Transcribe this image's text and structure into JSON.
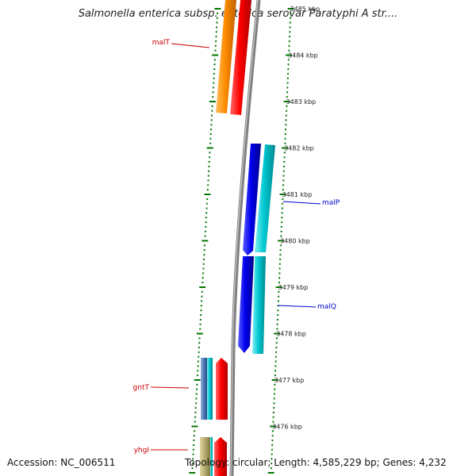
{
  "title": "Salmonella enterica subsp. enterica serovar Paratyphi A str....",
  "footer": {
    "accession": "Accession: NC_006511",
    "summary": "Topology: circular; Length: 4,585,229 bp; Genes: 4,232"
  },
  "ticks": [
    {
      "kbp": 3485,
      "label": "3485 kbp"
    },
    {
      "kbp": 3484,
      "label": "3484 kbp"
    },
    {
      "kbp": 3483,
      "label": "3483 kbp"
    },
    {
      "kbp": 3482,
      "label": "3482 kbp"
    },
    {
      "kbp": 3481,
      "label": "3481 kbp"
    },
    {
      "kbp": 3480,
      "label": "3480 kbp"
    },
    {
      "kbp": 3479,
      "label": "3479 kbp"
    },
    {
      "kbp": 3478,
      "label": "3478 kbp"
    },
    {
      "kbp": 3477,
      "label": "3477 kbp"
    },
    {
      "kbp": 3476,
      "label": "3476 kbp"
    }
  ],
  "genes": [
    {
      "name": "malT",
      "strand": "forward",
      "color": "#cc0000"
    },
    {
      "name": "malP",
      "strand": "reverse",
      "color": "#0000cc"
    },
    {
      "name": "malQ",
      "strand": "reverse",
      "color": "#0000cc"
    },
    {
      "name": "gntT",
      "strand": "forward",
      "color": "#cc0000"
    },
    {
      "name": "yhgI",
      "strand": "forward",
      "color": "#cc0000"
    }
  ],
  "colors": {
    "forward_gene": "#ff0000",
    "forward_cds": "#ff8c00",
    "reverse_gene": "#0000ee",
    "reverse_cds": "#00c8d2",
    "other_feature": "#b4aa6e",
    "misc_feature": "#5078b4",
    "backbone": "#808080",
    "tick": "#007700"
  }
}
